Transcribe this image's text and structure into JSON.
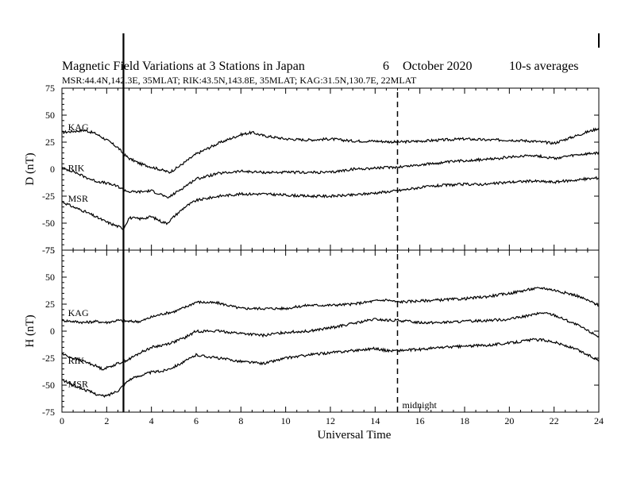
{
  "figure": {
    "title": "Magnetic Field Variations at 3 Stations in Japan",
    "date_day": "6",
    "date_month_year": "October 2020",
    "averaging": "10-s averages",
    "stations_line": "MSR:44.4N,142.3E, 35MLAT;  RIK:43.5N,143.8E, 35MLAT;  KAG:31.5N,130.7E, 22MLAT"
  },
  "chart_data": [
    {
      "type": "line",
      "ylabel": "D (nT)",
      "xlabel": "",
      "ylim": [
        -75,
        75
      ],
      "yticks": [
        "75",
        "50",
        "25",
        "0",
        "-25",
        "-50",
        "-75"
      ],
      "xlim": [
        0,
        24
      ],
      "series": [
        {
          "name": "KAG",
          "label_at": [
            0.2,
            36
          ],
          "x": [
            0,
            0.5,
            1,
            1.5,
            2,
            2.5,
            2.75,
            3,
            3.5,
            4,
            4.5,
            4.8,
            5.2,
            6,
            7,
            8,
            8.5,
            9,
            10,
            11,
            12,
            13,
            14,
            15,
            16,
            17,
            18,
            19,
            20,
            21,
            22,
            23,
            24
          ],
          "y": [
            34,
            35,
            36,
            33,
            27,
            20,
            14,
            10,
            5,
            2,
            -1,
            -3,
            2,
            14,
            24,
            32,
            34,
            31,
            28,
            27,
            28,
            26,
            26,
            25,
            26,
            27,
            28,
            27,
            27,
            26,
            24,
            31,
            38
          ]
        },
        {
          "name": "RIK",
          "label_at": [
            0.2,
            -2
          ],
          "x": [
            0,
            0.5,
            1,
            1.5,
            2,
            2.5,
            2.75,
            3,
            3.5,
            4,
            4.5,
            4.7,
            5,
            5.5,
            6,
            7,
            8,
            9,
            10,
            11,
            12,
            13,
            14,
            15,
            16,
            17,
            18,
            19,
            20,
            21,
            22,
            23,
            24
          ],
          "y": [
            1,
            -2,
            -7,
            -11,
            -13,
            -16,
            -19,
            -21,
            -21,
            -20,
            -24,
            -27,
            -23,
            -16,
            -9,
            -4,
            -2,
            -3,
            -3,
            -3,
            -3,
            0,
            1,
            2,
            4,
            6,
            8,
            9,
            11,
            13,
            10,
            13,
            15
          ]
        },
        {
          "name": "MSR",
          "label_at": [
            0.2,
            -30
          ],
          "x": [
            0,
            0.5,
            1,
            1.5,
            2,
            2.5,
            2.75,
            3,
            3.5,
            4,
            4.5,
            4.7,
            5,
            5.5,
            6,
            7,
            8,
            9,
            10,
            11,
            12,
            13,
            14,
            15,
            16,
            17,
            18,
            19,
            20,
            21,
            22,
            23,
            24
          ],
          "y": [
            -30,
            -35,
            -39,
            -44,
            -49,
            -53,
            -55,
            -45,
            -46,
            -44,
            -49,
            -50,
            -44,
            -35,
            -29,
            -25,
            -23,
            -23,
            -24,
            -25,
            -25,
            -24,
            -22,
            -20,
            -17,
            -15,
            -14,
            -14,
            -12,
            -11,
            -12,
            -10,
            -8
          ]
        }
      ]
    },
    {
      "type": "line",
      "ylabel": "H (nT)",
      "xlabel": "Universal Time",
      "ylim": [
        -75,
        75
      ],
      "yticks": [
        "75",
        "50",
        "25",
        "0",
        "-25",
        "-50",
        "-75"
      ],
      "xlim": [
        0,
        24
      ],
      "xticks": [
        "0",
        "2",
        "4",
        "6",
        "8",
        "10",
        "12",
        "14",
        "16",
        "18",
        "20",
        "22",
        "24"
      ],
      "series": [
        {
          "name": "KAG",
          "label_at": [
            0.2,
            14
          ],
          "x": [
            0,
            0.5,
            1,
            1.5,
            2,
            2.5,
            3,
            3.5,
            4,
            4.5,
            5,
            5.5,
            6,
            7,
            8,
            9,
            10,
            11,
            12,
            13,
            14,
            14.5,
            15,
            16,
            17,
            18,
            19,
            20,
            21,
            21.5,
            22,
            23,
            24
          ],
          "y": [
            10,
            9,
            8,
            9,
            8,
            10,
            9,
            9,
            13,
            16,
            18,
            22,
            27,
            26,
            21,
            21,
            21,
            24,
            24,
            25,
            28,
            29,
            27,
            28,
            29,
            30,
            32,
            35,
            39,
            40,
            38,
            33,
            24
          ]
        },
        {
          "name": "RIK",
          "label_at": [
            0.2,
            -30
          ],
          "x": [
            0,
            0.5,
            1,
            1.5,
            1.8,
            2,
            2.5,
            3,
            3.5,
            4,
            4.5,
            5,
            5.5,
            6,
            7,
            8,
            9,
            10,
            11,
            12,
            13,
            14,
            14.5,
            15,
            16,
            17,
            18,
            19,
            20,
            21,
            21.5,
            22,
            23,
            24
          ],
          "y": [
            -21,
            -25,
            -28,
            -32,
            -35,
            -34,
            -30,
            -26,
            -20,
            -15,
            -13,
            -10,
            -6,
            0,
            0,
            -2,
            -4,
            -1,
            0,
            3,
            7,
            11,
            10,
            10,
            8,
            8,
            9,
            10,
            11,
            15,
            17,
            15,
            6,
            -5
          ]
        },
        {
          "name": "MSR",
          "label_at": [
            0.2,
            -52
          ],
          "x": [
            0,
            0.5,
            1,
            1.5,
            1.8,
            2,
            2.5,
            3,
            3.5,
            4,
            4.5,
            5,
            5.5,
            6,
            7,
            8,
            9,
            10,
            11,
            12,
            13,
            14,
            14.5,
            15,
            16,
            17,
            18,
            19,
            20,
            21,
            21.5,
            22,
            23,
            24
          ],
          "y": [
            -45,
            -50,
            -54,
            -58,
            -60,
            -60,
            -55,
            -45,
            -41,
            -38,
            -37,
            -33,
            -28,
            -22,
            -25,
            -28,
            -30,
            -25,
            -22,
            -20,
            -18,
            -16,
            -18,
            -18,
            -17,
            -15,
            -14,
            -13,
            -11,
            -8,
            -8,
            -10,
            -17,
            -27
          ]
        }
      ]
    }
  ],
  "annotations": {
    "midnight_label": "midnight",
    "midnight_ut": 15,
    "event_line_ut": 2.75
  }
}
